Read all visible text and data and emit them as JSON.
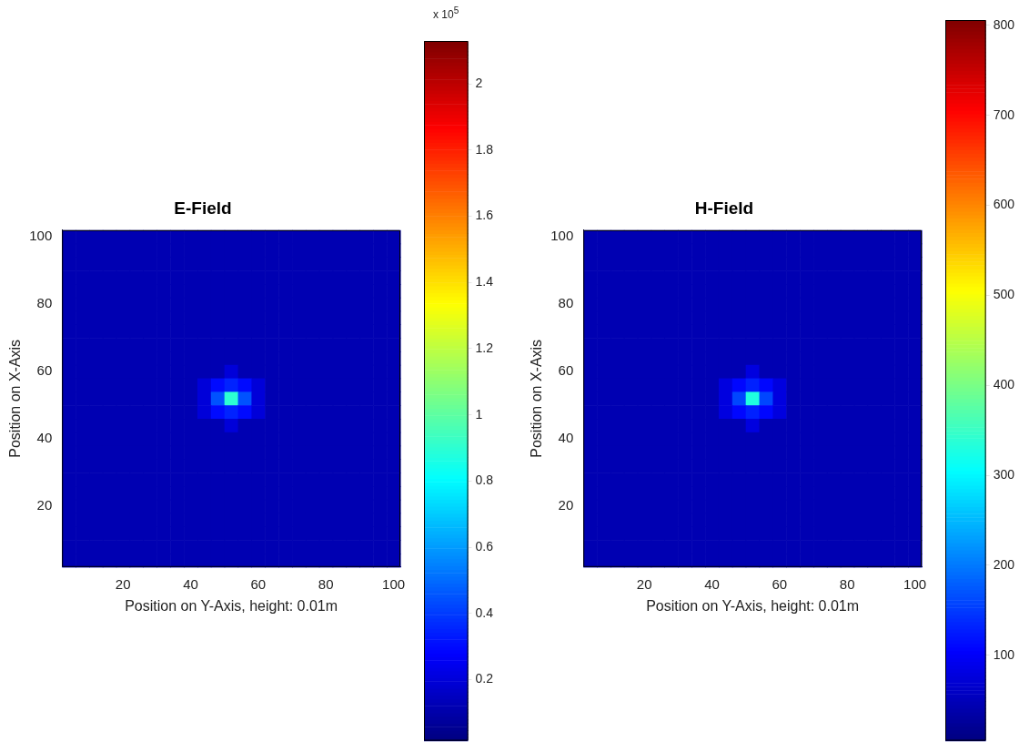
{
  "chart_data": [
    {
      "type": "heatmap",
      "title": "E-Field",
      "xlabel": "Position on Y-Axis, height: 0.01m",
      "ylabel": "Position on X-Axis",
      "categories": [
        null,
        null,
        null,
        null,
        "20",
        null,
        null,
        null,
        null,
        "40",
        null,
        null,
        null,
        null,
        "60",
        null,
        null,
        null,
        null,
        "80",
        null,
        null,
        null,
        null,
        "100"
      ],
      "y_categories": [
        "100",
        null,
        null,
        null,
        null,
        "80",
        null,
        null,
        null,
        null,
        "60",
        null,
        null,
        null,
        null,
        "40",
        null,
        null,
        null,
        null,
        "20",
        null,
        null,
        null,
        null
      ],
      "clim": [
        0.015,
        2.13
      ],
      "cticks": [
        0.2,
        0.4,
        0.6,
        0.8,
        1,
        1.2,
        1.4,
        1.6,
        1.8,
        2
      ],
      "annotations": [
        "x 10$^{5}$"
      ],
      "cells": [
        [
          0.12,
          0.12,
          0.12,
          0.12,
          0.12,
          0.12,
          0.12,
          0.12,
          0.12,
          0.12,
          0.12,
          0.12,
          0.12,
          0.12,
          0.12,
          0.12,
          0.12,
          0.12,
          0.12,
          0.12,
          0.12,
          0.12,
          0.12,
          0.12,
          0.12
        ],
        [
          0.12,
          0.12,
          0.12,
          0.12,
          0.12,
          0.12,
          0.12,
          0.12,
          0.12,
          0.12,
          0.12,
          0.12,
          0.12,
          0.12,
          0.12,
          0.12,
          0.12,
          0.12,
          0.12,
          0.12,
          0.12,
          0.12,
          0.12,
          0.12,
          0.12
        ],
        [
          0.12,
          0.12,
          0.12,
          0.12,
          0.12,
          0.12,
          0.12,
          0.12,
          0.12,
          0.12,
          0.12,
          0.12,
          0.12,
          0.12,
          0.12,
          0.12,
          0.12,
          0.12,
          0.12,
          0.12,
          0.12,
          0.12,
          0.12,
          0.12,
          0.12
        ],
        [
          0.12,
          0.12,
          0.12,
          0.12,
          0.12,
          0.12,
          0.12,
          0.12,
          0.12,
          0.12,
          0.12,
          0.12,
          0.12,
          0.12,
          0.12,
          0.12,
          0.12,
          0.12,
          0.12,
          0.12,
          0.12,
          0.12,
          0.12,
          0.12,
          0.12
        ],
        [
          0.12,
          0.12,
          0.12,
          0.12,
          0.12,
          0.12,
          0.12,
          0.12,
          0.12,
          0.12,
          0.12,
          0.12,
          0.12,
          0.12,
          0.12,
          0.12,
          0.12,
          0.12,
          0.12,
          0.12,
          0.12,
          0.12,
          0.12,
          0.12,
          0.12
        ],
        [
          0.12,
          0.12,
          0.12,
          0.12,
          0.12,
          0.12,
          0.12,
          0.12,
          0.12,
          0.12,
          0.12,
          0.12,
          0.12,
          0.12,
          0.12,
          0.12,
          0.12,
          0.12,
          0.12,
          0.12,
          0.12,
          0.12,
          0.12,
          0.12,
          0.12
        ],
        [
          0.12,
          0.12,
          0.12,
          0.12,
          0.12,
          0.12,
          0.12,
          0.12,
          0.12,
          0.12,
          0.12,
          0.12,
          0.12,
          0.12,
          0.12,
          0.12,
          0.12,
          0.12,
          0.12,
          0.12,
          0.12,
          0.12,
          0.12,
          0.12,
          0.12
        ],
        [
          0.12,
          0.12,
          0.12,
          0.12,
          0.12,
          0.12,
          0.12,
          0.12,
          0.12,
          0.12,
          0.12,
          0.12,
          0.12,
          0.12,
          0.12,
          0.12,
          0.12,
          0.12,
          0.12,
          0.12,
          0.12,
          0.12,
          0.12,
          0.12,
          0.12
        ],
        [
          0.12,
          0.12,
          0.12,
          0.12,
          0.12,
          0.12,
          0.12,
          0.12,
          0.12,
          0.12,
          0.12,
          0.12,
          0.12,
          0.12,
          0.12,
          0.12,
          0.12,
          0.12,
          0.12,
          0.12,
          0.12,
          0.12,
          0.12,
          0.12,
          0.12
        ],
        [
          0.12,
          0.12,
          0.12,
          0.12,
          0.12,
          0.12,
          0.12,
          0.12,
          0.12,
          0.12,
          0.12,
          0.12,
          0.12,
          0.12,
          0.12,
          0.12,
          0.12,
          0.12,
          0.12,
          0.12,
          0.12,
          0.12,
          0.12,
          0.12,
          0.12
        ],
        [
          0.12,
          0.12,
          0.12,
          0.12,
          0.12,
          0.12,
          0.12,
          0.12,
          0.12,
          0.12,
          0.12,
          0.12,
          0.2,
          0.12,
          0.12,
          0.12,
          0.12,
          0.12,
          0.12,
          0.12,
          0.12,
          0.12,
          0.12,
          0.12,
          0.12
        ],
        [
          0.12,
          0.12,
          0.12,
          0.12,
          0.12,
          0.12,
          0.12,
          0.12,
          0.12,
          0.12,
          0.2,
          0.3,
          0.35,
          0.3,
          0.2,
          0.12,
          0.12,
          0.12,
          0.12,
          0.12,
          0.12,
          0.12,
          0.12,
          0.12,
          0.12
        ],
        [
          0.12,
          0.12,
          0.12,
          0.12,
          0.12,
          0.12,
          0.12,
          0.12,
          0.12,
          0.12,
          0.2,
          0.45,
          0.9,
          0.45,
          0.2,
          0.12,
          0.12,
          0.12,
          0.12,
          0.12,
          0.12,
          0.12,
          0.12,
          0.12,
          0.12
        ],
        [
          0.12,
          0.12,
          0.12,
          0.12,
          0.12,
          0.12,
          0.12,
          0.12,
          0.12,
          0.12,
          0.2,
          0.3,
          0.35,
          0.3,
          0.2,
          0.12,
          0.12,
          0.12,
          0.12,
          0.12,
          0.12,
          0.12,
          0.12,
          0.12,
          0.12
        ],
        [
          0.12,
          0.12,
          0.12,
          0.12,
          0.12,
          0.12,
          0.12,
          0.12,
          0.12,
          0.12,
          0.12,
          0.12,
          0.2,
          0.12,
          0.12,
          0.12,
          0.12,
          0.12,
          0.12,
          0.12,
          0.12,
          0.12,
          0.12,
          0.12,
          0.12
        ],
        [
          0.12,
          0.12,
          0.12,
          0.12,
          0.12,
          0.12,
          0.12,
          0.12,
          0.12,
          0.12,
          0.12,
          0.12,
          0.12,
          0.12,
          0.12,
          0.12,
          0.12,
          0.12,
          0.12,
          0.12,
          0.12,
          0.12,
          0.12,
          0.12,
          0.12
        ],
        [
          0.12,
          0.12,
          0.12,
          0.12,
          0.12,
          0.12,
          0.12,
          0.12,
          0.12,
          0.12,
          0.12,
          0.12,
          0.12,
          0.12,
          0.12,
          0.12,
          0.12,
          0.12,
          0.12,
          0.12,
          0.12,
          0.12,
          0.12,
          0.12,
          0.12
        ],
        [
          0.12,
          0.12,
          0.12,
          0.12,
          0.12,
          0.12,
          0.12,
          0.12,
          0.12,
          0.12,
          0.12,
          0.12,
          0.12,
          0.12,
          0.12,
          0.12,
          0.12,
          0.12,
          0.12,
          0.12,
          0.12,
          0.12,
          0.12,
          0.12,
          0.12
        ],
        [
          0.12,
          0.12,
          0.12,
          0.12,
          0.12,
          0.12,
          0.12,
          0.12,
          0.12,
          0.12,
          0.12,
          0.12,
          0.12,
          0.12,
          0.12,
          0.12,
          0.12,
          0.12,
          0.12,
          0.12,
          0.12,
          0.12,
          0.12,
          0.12,
          0.12
        ],
        [
          0.12,
          0.12,
          0.12,
          0.12,
          0.12,
          0.12,
          0.12,
          0.12,
          0.12,
          0.12,
          0.12,
          0.12,
          0.12,
          0.12,
          0.12,
          0.12,
          0.12,
          0.12,
          0.12,
          0.12,
          0.12,
          0.12,
          0.12,
          0.12,
          0.12
        ],
        [
          0.12,
          0.12,
          0.12,
          0.12,
          0.12,
          0.12,
          0.12,
          0.12,
          0.12,
          0.12,
          0.12,
          0.12,
          0.12,
          0.12,
          0.12,
          0.12,
          0.12,
          0.12,
          0.12,
          0.12,
          0.12,
          0.12,
          0.12,
          0.12,
          0.12
        ],
        [
          0.12,
          0.12,
          0.12,
          0.12,
          0.12,
          0.12,
          0.12,
          0.12,
          0.12,
          0.12,
          0.12,
          0.12,
          0.12,
          0.12,
          0.12,
          0.12,
          0.12,
          0.12,
          0.12,
          0.12,
          0.12,
          0.12,
          0.12,
          0.12,
          0.12
        ],
        [
          0.12,
          0.12,
          0.12,
          0.12,
          0.12,
          0.12,
          0.12,
          0.12,
          0.12,
          0.12,
          0.12,
          0.12,
          0.12,
          0.12,
          0.12,
          0.12,
          0.12,
          0.12,
          0.12,
          0.12,
          0.12,
          0.12,
          0.12,
          0.12,
          0.12
        ],
        [
          0.12,
          0.12,
          0.12,
          0.12,
          0.12,
          0.12,
          0.12,
          0.12,
          0.12,
          0.12,
          0.12,
          0.12,
          0.12,
          0.12,
          0.12,
          0.12,
          0.12,
          0.12,
          0.12,
          0.12,
          0.12,
          0.12,
          0.12,
          0.12,
          0.12
        ],
        [
          0.12,
          0.12,
          0.12,
          0.12,
          0.12,
          0.12,
          0.12,
          0.12,
          0.12,
          0.12,
          0.12,
          0.12,
          0.12,
          0.12,
          0.12,
          0.12,
          0.12,
          0.12,
          0.12,
          0.12,
          0.12,
          0.12,
          0.12,
          0.12,
          0.12
        ]
      ]
    },
    {
      "type": "heatmap",
      "title": "H-Field",
      "xlabel": "Position on Y-Axis, height: 0.01m",
      "ylabel": "Position on X-Axis",
      "categories": [
        null,
        null,
        null,
        null,
        "20",
        null,
        null,
        null,
        null,
        "40",
        null,
        null,
        null,
        null,
        "60",
        null,
        null,
        null,
        null,
        "80",
        null,
        null,
        null,
        null,
        "100"
      ],
      "y_categories": [
        "100",
        null,
        null,
        null,
        null,
        "80",
        null,
        null,
        null,
        null,
        "60",
        null,
        null,
        null,
        null,
        "40",
        null,
        null,
        null,
        null,
        "20",
        null,
        null,
        null,
        null
      ],
      "clim": [
        5,
        806
      ],
      "cticks": [
        100,
        200,
        300,
        400,
        500,
        600,
        700,
        800
      ],
      "cells": [
        [
          45,
          45,
          45,
          45,
          45,
          45,
          45,
          45,
          45,
          45,
          45,
          45,
          45,
          45,
          45,
          45,
          45,
          45,
          45,
          45,
          45,
          45,
          45,
          45,
          45
        ],
        [
          45,
          45,
          45,
          45,
          45,
          45,
          45,
          45,
          45,
          45,
          45,
          45,
          45,
          45,
          45,
          45,
          45,
          45,
          45,
          45,
          45,
          45,
          45,
          45,
          45
        ],
        [
          45,
          45,
          45,
          45,
          45,
          45,
          45,
          45,
          45,
          45,
          45,
          45,
          45,
          45,
          45,
          45,
          45,
          45,
          45,
          45,
          45,
          45,
          45,
          45,
          45
        ],
        [
          45,
          45,
          45,
          45,
          45,
          45,
          45,
          45,
          45,
          45,
          45,
          45,
          45,
          45,
          45,
          45,
          45,
          45,
          45,
          45,
          45,
          45,
          45,
          45,
          45
        ],
        [
          45,
          45,
          45,
          45,
          45,
          45,
          45,
          45,
          45,
          45,
          45,
          45,
          45,
          45,
          45,
          45,
          45,
          45,
          45,
          45,
          45,
          45,
          45,
          45,
          45
        ],
        [
          45,
          45,
          45,
          45,
          45,
          45,
          45,
          45,
          45,
          45,
          45,
          45,
          45,
          45,
          45,
          45,
          45,
          45,
          45,
          45,
          45,
          45,
          45,
          45,
          45
        ],
        [
          45,
          45,
          45,
          45,
          45,
          45,
          45,
          45,
          45,
          45,
          45,
          45,
          45,
          45,
          45,
          45,
          45,
          45,
          45,
          45,
          45,
          45,
          45,
          45,
          45
        ],
        [
          45,
          45,
          45,
          45,
          45,
          45,
          45,
          45,
          45,
          45,
          45,
          45,
          45,
          45,
          45,
          45,
          45,
          45,
          45,
          45,
          45,
          45,
          45,
          45,
          45
        ],
        [
          45,
          45,
          45,
          45,
          45,
          45,
          45,
          45,
          45,
          45,
          45,
          45,
          45,
          45,
          45,
          45,
          45,
          45,
          45,
          45,
          45,
          45,
          45,
          45,
          45
        ],
        [
          45,
          45,
          45,
          45,
          45,
          45,
          45,
          45,
          45,
          45,
          45,
          45,
          45,
          45,
          45,
          45,
          45,
          45,
          45,
          45,
          45,
          45,
          45,
          45,
          45
        ],
        [
          45,
          45,
          45,
          45,
          45,
          45,
          45,
          45,
          45,
          45,
          45,
          45,
          80,
          45,
          45,
          45,
          45,
          45,
          45,
          45,
          45,
          45,
          45,
          45,
          45
        ],
        [
          45,
          45,
          45,
          45,
          45,
          45,
          45,
          45,
          45,
          45,
          80,
          110,
          130,
          110,
          80,
          45,
          45,
          45,
          45,
          45,
          45,
          45,
          45,
          45,
          45
        ],
        [
          45,
          45,
          45,
          45,
          45,
          45,
          45,
          45,
          45,
          45,
          80,
          160,
          330,
          160,
          80,
          45,
          45,
          45,
          45,
          45,
          45,
          45,
          45,
          45,
          45
        ],
        [
          45,
          45,
          45,
          45,
          45,
          45,
          45,
          45,
          45,
          45,
          80,
          110,
          130,
          110,
          80,
          45,
          45,
          45,
          45,
          45,
          45,
          45,
          45,
          45,
          45
        ],
        [
          45,
          45,
          45,
          45,
          45,
          45,
          45,
          45,
          45,
          45,
          45,
          45,
          80,
          45,
          45,
          45,
          45,
          45,
          45,
          45,
          45,
          45,
          45,
          45,
          45
        ],
        [
          45,
          45,
          45,
          45,
          45,
          45,
          45,
          45,
          45,
          45,
          45,
          45,
          45,
          45,
          45,
          45,
          45,
          45,
          45,
          45,
          45,
          45,
          45,
          45,
          45
        ],
        [
          45,
          45,
          45,
          45,
          45,
          45,
          45,
          45,
          45,
          45,
          45,
          45,
          45,
          45,
          45,
          45,
          45,
          45,
          45,
          45,
          45,
          45,
          45,
          45,
          45
        ],
        [
          45,
          45,
          45,
          45,
          45,
          45,
          45,
          45,
          45,
          45,
          45,
          45,
          45,
          45,
          45,
          45,
          45,
          45,
          45,
          45,
          45,
          45,
          45,
          45,
          45
        ],
        [
          45,
          45,
          45,
          45,
          45,
          45,
          45,
          45,
          45,
          45,
          45,
          45,
          45,
          45,
          45,
          45,
          45,
          45,
          45,
          45,
          45,
          45,
          45,
          45,
          45
        ],
        [
          45,
          45,
          45,
          45,
          45,
          45,
          45,
          45,
          45,
          45,
          45,
          45,
          45,
          45,
          45,
          45,
          45,
          45,
          45,
          45,
          45,
          45,
          45,
          45,
          45
        ],
        [
          45,
          45,
          45,
          45,
          45,
          45,
          45,
          45,
          45,
          45,
          45,
          45,
          45,
          45,
          45,
          45,
          45,
          45,
          45,
          45,
          45,
          45,
          45,
          45,
          45
        ],
        [
          45,
          45,
          45,
          45,
          45,
          45,
          45,
          45,
          45,
          45,
          45,
          45,
          45,
          45,
          45,
          45,
          45,
          45,
          45,
          45,
          45,
          45,
          45,
          45,
          45
        ],
        [
          45,
          45,
          45,
          45,
          45,
          45,
          45,
          45,
          45,
          45,
          45,
          45,
          45,
          45,
          45,
          45,
          45,
          45,
          45,
          45,
          45,
          45,
          45,
          45,
          45
        ],
        [
          45,
          45,
          45,
          45,
          45,
          45,
          45,
          45,
          45,
          45,
          45,
          45,
          45,
          45,
          45,
          45,
          45,
          45,
          45,
          45,
          45,
          45,
          45,
          45,
          45
        ],
        [
          45,
          45,
          45,
          45,
          45,
          45,
          45,
          45,
          45,
          45,
          45,
          45,
          45,
          45,
          45,
          45,
          45,
          45,
          45,
          45,
          45,
          45,
          45,
          45,
          45
        ]
      ]
    }
  ]
}
